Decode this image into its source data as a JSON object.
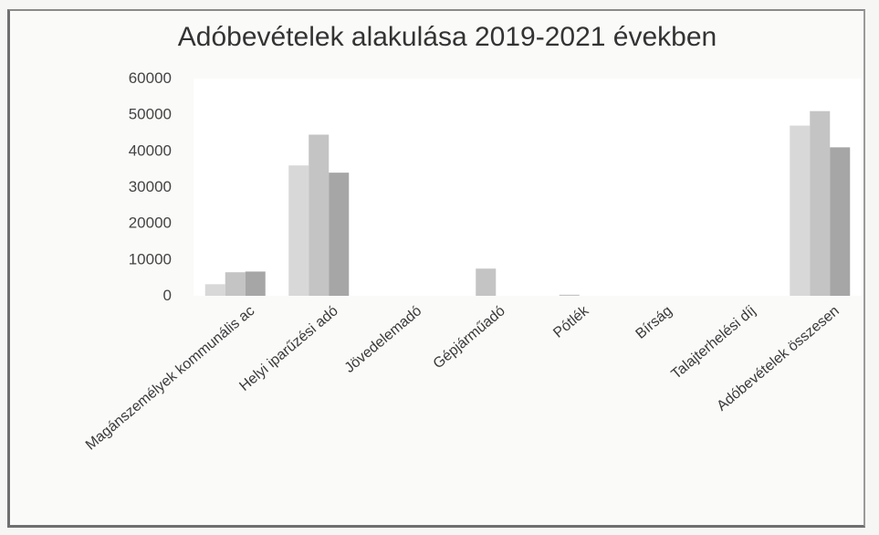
{
  "chart_data": {
    "type": "bar",
    "title": "Adóbevételek alakulása 2019-2021 években",
    "xlabel": "",
    "ylabel": "",
    "categories": [
      "Magánszemélyek kommunális ac",
      "Helyi iparűzési adó",
      "Jövedelemadó",
      "Gépjárműadó",
      "Pótlék",
      "Bírság",
      "Talajterhelési díj",
      "Adóbevételek összesen"
    ],
    "series": [
      {
        "values": [
          3200,
          36000,
          0,
          0,
          0,
          0,
          0,
          47000
        ]
      },
      {
        "values": [
          6500,
          44500,
          0,
          7500,
          300,
          0,
          0,
          51000
        ]
      },
      {
        "values": [
          6700,
          34000,
          0,
          0,
          0,
          0,
          0,
          41000
        ]
      }
    ],
    "ylim": [
      0,
      60000
    ],
    "yticks": [
      0,
      10000,
      20000,
      30000,
      40000,
      50000,
      60000
    ],
    "grid": false,
    "legend": "none",
    "colors": [
      "#d8d8d8",
      "#c4c4c4",
      "#a6a6a6"
    ]
  }
}
